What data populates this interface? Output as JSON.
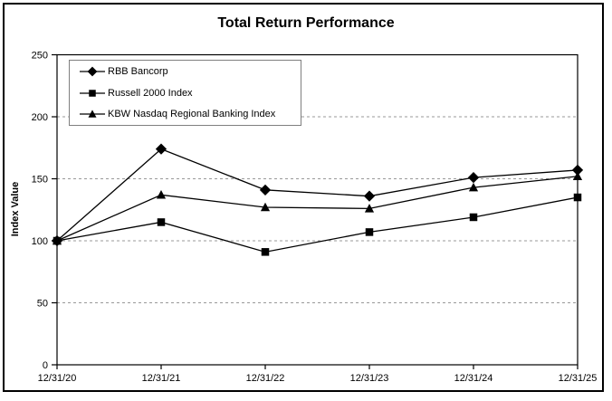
{
  "chart_data": {
    "type": "line",
    "title": "Total Return Performance",
    "ylabel": "Index Value",
    "categories": [
      "12/31/20",
      "12/31/21",
      "12/31/22",
      "12/31/23",
      "12/31/24",
      "12/31/25"
    ],
    "series": [
      {
        "name": "RBB Bancorp",
        "marker": "diamond",
        "values": [
          100,
          174,
          141,
          136,
          151,
          157
        ]
      },
      {
        "name": "Russell 2000 Index",
        "marker": "square",
        "values": [
          100,
          115,
          91,
          107,
          119,
          135
        ]
      },
      {
        "name": "KBW Nasdaq Regional Banking Index",
        "marker": "triangle",
        "values": [
          100,
          137,
          127,
          126,
          143,
          152
        ]
      }
    ],
    "ylim": [
      0,
      250
    ],
    "yticks": [
      0,
      50,
      100,
      150,
      200,
      250
    ],
    "gridlines": [
      50,
      100,
      150,
      200
    ],
    "grid_style": "dashed",
    "legend_position": "top-left-inside",
    "line_color": "#000000",
    "grid_color": "#999999",
    "border_color": "#000000"
  }
}
